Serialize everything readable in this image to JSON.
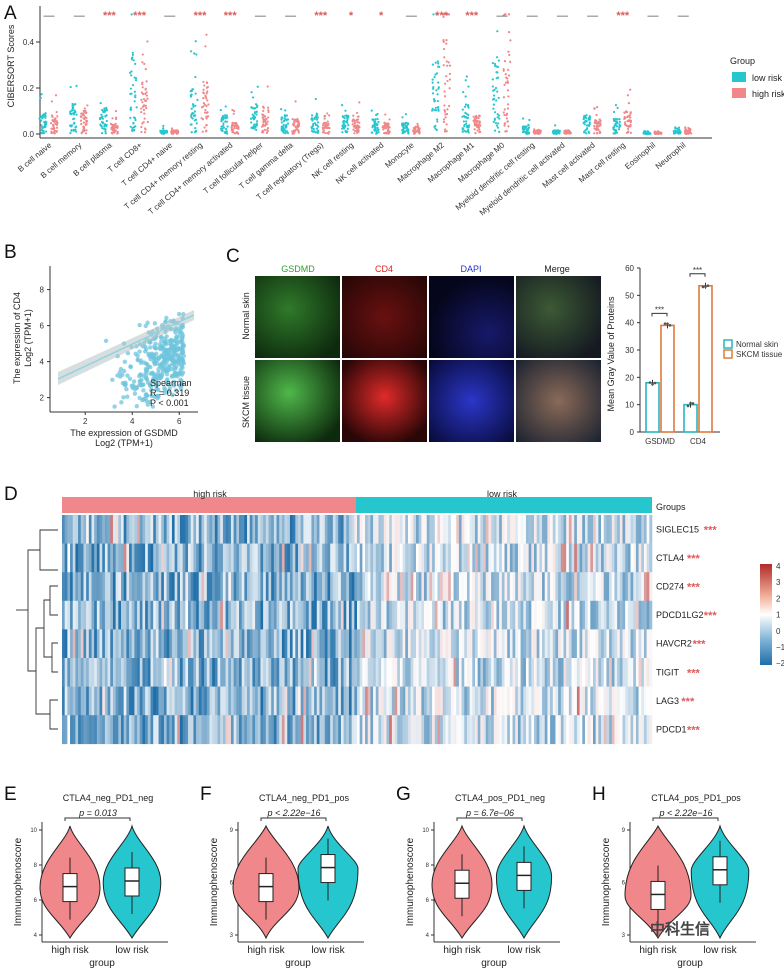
{
  "panels": {
    "A": {
      "letter": "A",
      "ylabel": "CIBERSORT Scores",
      "yticks": [
        "0.0",
        "0.2",
        "0.4"
      ],
      "legend": {
        "title": "Group",
        "items": [
          "low risk",
          "high risk"
        ]
      },
      "colors": {
        "low": "#26c6cf",
        "high": "#f0878a"
      },
      "cells": [
        {
          "name": "B cell naive",
          "sig": "—"
        },
        {
          "name": "B cell memory",
          "sig": "—"
        },
        {
          "name": "B cell plasma",
          "sig": "***"
        },
        {
          "name": "T cell CD8+",
          "sig": "***"
        },
        {
          "name": "T cell CD4+ naive",
          "sig": "—"
        },
        {
          "name": "T cell CD4+ memory resting",
          "sig": "***"
        },
        {
          "name": "T cell CD4+ memory activated",
          "sig": "***"
        },
        {
          "name": "T cell follicular helper",
          "sig": "—"
        },
        {
          "name": "T cell gamma delta",
          "sig": "—"
        },
        {
          "name": "T cell regulatory (Tregs)",
          "sig": "***"
        },
        {
          "name": "NK cell resting",
          "sig": "*"
        },
        {
          "name": "NK cell activated",
          "sig": "*"
        },
        {
          "name": "Monocyte",
          "sig": "—"
        },
        {
          "name": "Macrophage M2",
          "sig": "***"
        },
        {
          "name": "Macrophage M1",
          "sig": "***"
        },
        {
          "name": "Macrophage M0",
          "sig": "—"
        },
        {
          "name": "Myeloid dendritic cell resting",
          "sig": "—"
        },
        {
          "name": "Myeloid dendritic cell activated",
          "sig": "—"
        },
        {
          "name": "Mast cell activated",
          "sig": "—"
        },
        {
          "name": "Mast cell resting",
          "sig": "***"
        },
        {
          "name": "Eosinophil",
          "sig": "—"
        },
        {
          "name": "Neutrophil",
          "sig": "—"
        }
      ]
    },
    "B": {
      "letter": "B",
      "ylabel1": "The expression of CD4",
      "ylabel2": "Log2 (TPM+1)",
      "xlabel1": "The expression of GSDMD",
      "xlabel2": "Log2 (TPM+1)",
      "xticks": [
        "2",
        "4",
        "6"
      ],
      "yticks": [
        "2",
        "4",
        "6",
        "8"
      ],
      "stat_title": "Spearman",
      "stat_r": "R = 0.319",
      "stat_p": "P < 0.001"
    },
    "C": {
      "letter": "C",
      "col_labels": [
        "GSDMD",
        "CD4",
        "DAPI",
        "Merge"
      ],
      "row_labels": [
        "Normal skin",
        "SKCM tissue"
      ],
      "bar_ylabel": "Mean Gray Value of Proteins",
      "bar_yticks": [
        "0",
        "10",
        "20",
        "30",
        "40",
        "50",
        "60"
      ],
      "legend": [
        "Normal skin",
        "SKCM tissue"
      ],
      "sig": "***",
      "chart_data": {
        "type": "bar",
        "categories": [
          "GSDMD",
          "CD4"
        ],
        "series": [
          {
            "name": "Normal skin",
            "values": [
              18,
              10
            ]
          },
          {
            "name": "SKCM tissue",
            "values": [
              39,
              53.5
            ]
          }
        ],
        "ylabel": "Mean Gray Value of Proteins",
        "ylim": [
          0,
          60
        ]
      }
    },
    "D": {
      "letter": "D",
      "groups_label": "Groups",
      "group_high": "high risk",
      "group_low": "low risk",
      "genes": [
        "SIGLEC15",
        "CTLA4",
        "CD274",
        "PDCD1LG2",
        "HAVCR2",
        "TIGIT",
        "LAG3",
        "PDCD1"
      ],
      "gene_sig": "***",
      "scale_ticks": [
        "4",
        "3",
        "2",
        "1",
        "0",
        "−1",
        "−2"
      ]
    },
    "violins": [
      {
        "letter": "E",
        "title": "CTLA4_neg_PD1_neg",
        "p": "p = 0.013",
        "ylabel": "Immunophenoscore",
        "xlabels": [
          "high risk",
          "low risk"
        ],
        "xtitle": "group",
        "yticks": [
          "10",
          "8",
          "6",
          "4"
        ]
      },
      {
        "letter": "F",
        "title": "CTLA4_neg_PD1_pos",
        "p": "p < 2.22e−16",
        "ylabel": "Immunophenoscore",
        "xlabels": [
          "high risk",
          "low risk"
        ],
        "xtitle": "group",
        "yticks": [
          "9",
          "6",
          "3"
        ]
      },
      {
        "letter": "G",
        "title": "CTLA4_pos_PD1_neg",
        "p": "p = 6.7e−06",
        "ylabel": "Immunophenoscore",
        "xlabels": [
          "high risk",
          "low risk"
        ],
        "xtitle": "group",
        "yticks": [
          "10",
          "8",
          "6",
          "4"
        ]
      },
      {
        "letter": "H",
        "title": "CTLA4_pos_PD1_pos",
        "p": "p < 2.22e−16",
        "ylabel": "Immunophenoscore",
        "xlabels": [
          "high risk",
          "low risk"
        ],
        "xtitle": "group",
        "yticks": [
          "9",
          "6",
          "3"
        ]
      }
    ],
    "watermark": "中科生信"
  }
}
